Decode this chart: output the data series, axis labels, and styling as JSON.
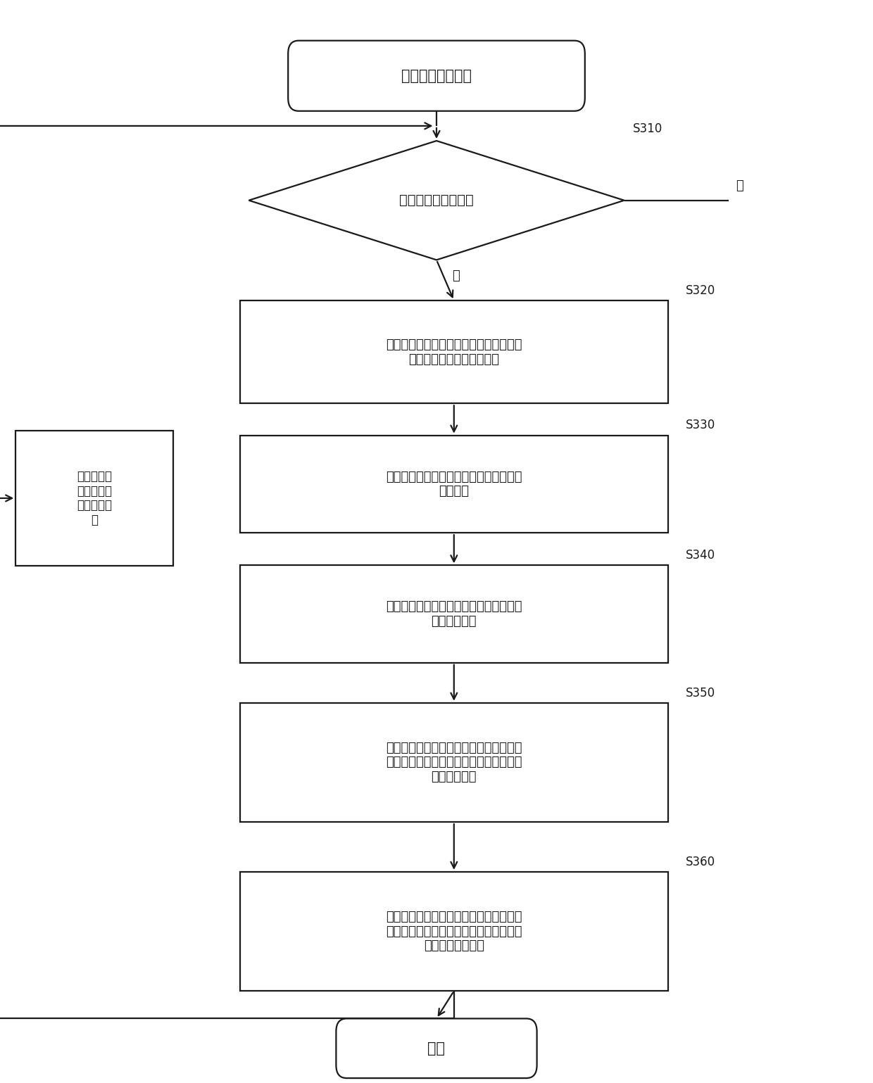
{
  "bg_color": "#ffffff",
  "line_color": "#1a1a1a",
  "text_color": "#1a1a1a",
  "start_text": "从预定图像片开始",
  "s310_text": "存在下一个图像片？",
  "s320_text": "对运动对象在当前图像片中的轮廓进行膏\n胀，以得到轮廓感兴趣区域",
  "s330_text": "将轮廓感兴趣区域划分成多个预定大小的\n跟踪单元",
  "s340_text": "通过模板匹配来得到跟踪单元在下一个图\n像片中的位置",
  "s350_text": "根据跟踪单元在下一个图像片中的位置来\n计算跟踪单元从当前图像片到下一个图像\n片的运动矢量",
  "s360_text": "基于运动对象在当前图像片中的轮廓和跟\n踪单元的运动矢量来得到运动对象在下一\n个图像片中的轮廓",
  "end_text": "结束",
  "feedback_text": "将所述下一\n个图像片作\n为当前图像\n片",
  "yes_label": "是",
  "no_label": "否",
  "s310_label": "S310",
  "s320_label": "S320",
  "s330_label": "S330",
  "s340_label": "S340",
  "s350_label": "S350",
  "s360_label": "S360"
}
